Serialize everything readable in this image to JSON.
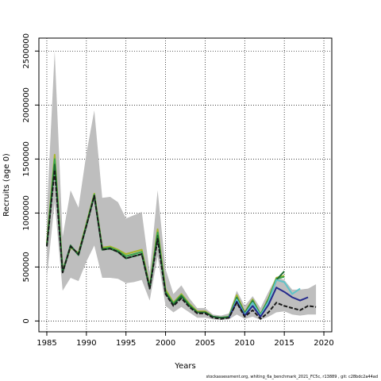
{
  "chart_data": {
    "type": "line",
    "xlabel": "Years",
    "ylabel": "Recruits (age 0)",
    "xlim": [
      1984,
      2021
    ],
    "ylim": [
      -100000,
      2620000
    ],
    "x_ticks": [
      1985,
      1990,
      1995,
      2000,
      2005,
      2010,
      2015,
      2020
    ],
    "y_ticks": [
      0,
      500000,
      1000000,
      1500000,
      2000000,
      2500000
    ],
    "grid": true,
    "colors": {
      "band": "#bebebe",
      "black": "#1a1a1a",
      "navy": "#252a8c",
      "teal": "#5fc4c8",
      "darkgreen": "#1d6b32",
      "green": "#3aa64a",
      "olive": "#a6b52a"
    },
    "band": {
      "x": [
        1985,
        1986,
        1987,
        1988,
        1989,
        1990,
        1991,
        1992,
        1993,
        1994,
        1995,
        1996,
        1997,
        1998,
        1999,
        2000,
        2001,
        2002,
        2003,
        2004,
        2005,
        2006,
        2007,
        2008,
        2009,
        2010,
        2011,
        2012,
        2013,
        2014,
        2015,
        2016,
        2017,
        2018,
        2019
      ],
      "upper": [
        1000000,
        2500000,
        780000,
        1210000,
        1050000,
        1550000,
        1950000,
        1140000,
        1150000,
        1100000,
        950000,
        980000,
        1010000,
        450000,
        1210000,
        480000,
        250000,
        330000,
        210000,
        120000,
        120000,
        60000,
        50000,
        70000,
        280000,
        140000,
        230000,
        120000,
        270000,
        410000,
        380000,
        290000,
        290000,
        300000,
        340000
      ],
      "lower": [
        400000,
        1100000,
        280000,
        400000,
        370000,
        550000,
        700000,
        400000,
        400000,
        390000,
        350000,
        360000,
        380000,
        190000,
        600000,
        140000,
        80000,
        130000,
        80000,
        30000,
        30000,
        15000,
        10000,
        15000,
        60000,
        20000,
        40000,
        10000,
        40000,
        80000,
        90000,
        60000,
        50000,
        60000,
        60000
      ]
    },
    "series": [
      {
        "color_key": "olive",
        "x": [
          1985,
          1986,
          1987,
          1988,
          1989,
          1990,
          1991,
          1992,
          1993,
          1994,
          1995,
          1996,
          1997,
          1998,
          1999,
          2000,
          2001,
          2002,
          2003,
          2004,
          2005,
          2006,
          2007,
          2008,
          2009,
          2010,
          2011,
          2012,
          2013,
          2014,
          2015
        ],
        "values": [
          720000,
          1540000,
          470000,
          680000,
          630000,
          900000,
          1180000,
          680000,
          690000,
          660000,
          620000,
          640000,
          660000,
          320000,
          850000,
          290000,
          170000,
          250000,
          160000,
          90000,
          90000,
          40000,
          30000,
          40000,
          240000,
          80000,
          200000,
          60000,
          210000,
          400000,
          420000
        ]
      },
      {
        "color_key": "green",
        "x": [
          1985,
          1986,
          1987,
          1988,
          1989,
          1990,
          1991,
          1992,
          1993,
          1994,
          1995,
          1996,
          1997,
          1998,
          1999,
          2000,
          2001,
          2002,
          2003,
          2004,
          2005,
          2006,
          2007,
          2008,
          2009,
          2010,
          2011,
          2012,
          2013,
          2014,
          2015
        ],
        "values": [
          700000,
          1500000,
          460000,
          690000,
          620000,
          890000,
          1170000,
          670000,
          680000,
          650000,
          600000,
          620000,
          640000,
          310000,
          820000,
          270000,
          160000,
          240000,
          150000,
          80000,
          80000,
          40000,
          30000,
          40000,
          220000,
          70000,
          190000,
          60000,
          200000,
          390000,
          410000
        ]
      },
      {
        "color_key": "darkgreen",
        "x": [
          1985,
          1986,
          1987,
          1988,
          1989,
          1990,
          1991,
          1992,
          1993,
          1994,
          1995,
          1996,
          1997,
          1998,
          1999,
          2000,
          2001,
          2002,
          2003,
          2004,
          2005,
          2006,
          2007,
          2008,
          2009,
          2010,
          2011,
          2012,
          2013,
          2014,
          2015
        ],
        "values": [
          690000,
          1450000,
          450000,
          700000,
          610000,
          880000,
          1160000,
          660000,
          670000,
          640000,
          580000,
          600000,
          620000,
          300000,
          790000,
          260000,
          150000,
          230000,
          140000,
          80000,
          80000,
          40000,
          30000,
          30000,
          210000,
          70000,
          180000,
          50000,
          190000,
          380000,
          460000
        ]
      },
      {
        "color_key": "teal",
        "x": [
          2008,
          2009,
          2010,
          2011,
          2012,
          2013,
          2014,
          2015,
          2016,
          2017
        ],
        "values": [
          30000,
          200000,
          60000,
          170000,
          50000,
          180000,
          380000,
          360000,
          250000,
          300000
        ]
      },
      {
        "color_key": "navy",
        "x": [
          2008,
          2009,
          2010,
          2011,
          2012,
          2013,
          2014,
          2015,
          2016,
          2017,
          2018
        ],
        "values": [
          30000,
          180000,
          50000,
          140000,
          40000,
          150000,
          310000,
          270000,
          220000,
          190000,
          220000
        ]
      },
      {
        "color_key": "black",
        "x": [
          1985,
          1986,
          1987,
          1988,
          1989,
          1990,
          1991,
          1992,
          1993,
          1994,
          1995,
          1996,
          1997,
          1998,
          1999,
          2000,
          2001,
          2002,
          2003,
          2004,
          2005,
          2006,
          2007,
          2008,
          2009,
          2010,
          2011,
          2012,
          2013,
          2014,
          2015,
          2016,
          2017,
          2018,
          2019
        ],
        "values": [
          690000,
          1400000,
          450000,
          690000,
          620000,
          880000,
          1160000,
          660000,
          670000,
          640000,
          580000,
          600000,
          620000,
          300000,
          760000,
          250000,
          140000,
          210000,
          130000,
          70000,
          70000,
          30000,
          20000,
          30000,
          170000,
          40000,
          100000,
          20000,
          80000,
          170000,
          140000,
          120000,
          100000,
          140000,
          130000
        ]
      }
    ]
  },
  "footnote": "stockassessment.org, whiting_6a_benchmark_2021_FC5c, r13889 , git: c28bdc2a44ad"
}
